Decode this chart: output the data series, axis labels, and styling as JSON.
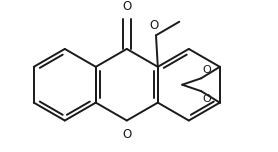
{
  "bg_color": "#ffffff",
  "line_color": "#1a1a1a",
  "lw": 1.4,
  "figsize": [
    2.78,
    1.52
  ],
  "dpi": 100,
  "xlim": [
    -1.55,
    1.85
  ],
  "ylim": [
    -0.78,
    0.92
  ]
}
